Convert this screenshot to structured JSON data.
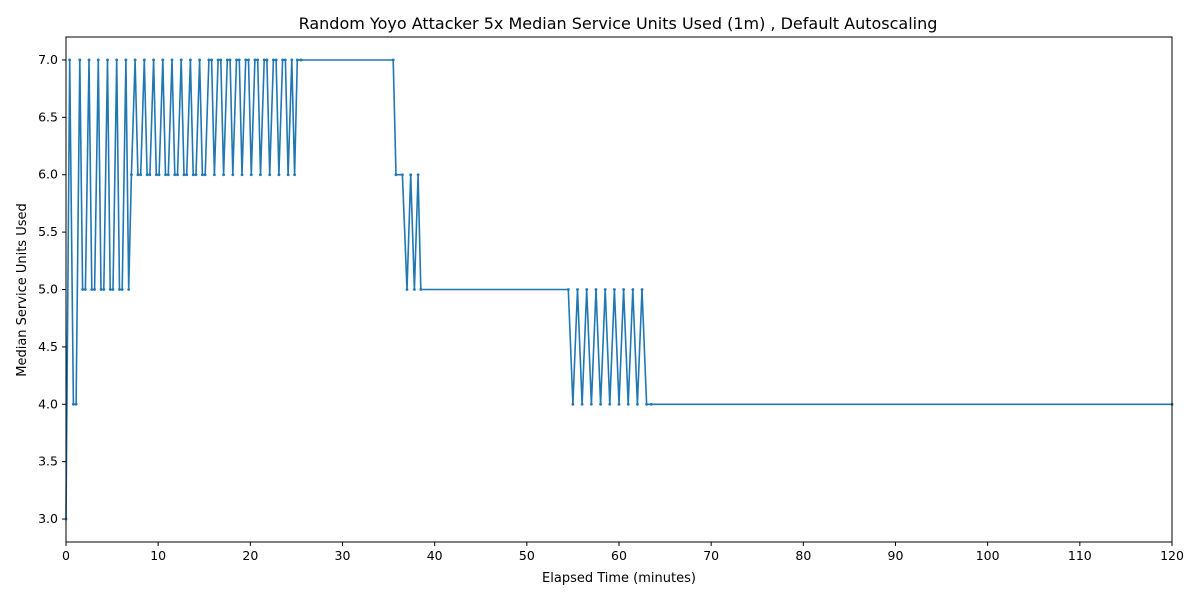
{
  "chart_data": {
    "type": "line",
    "title": "Random Yoyo Attacker 5x Median Service Units Used (1m) , Default Autoscaling",
    "xlabel": "Elapsed Time (minutes)",
    "ylabel": "Median Service Units Used",
    "xlim": [
      0,
      120
    ],
    "ylim": [
      2.8,
      7.2
    ],
    "xticks": [
      "0",
      "10",
      "20",
      "30",
      "40",
      "50",
      "60",
      "70",
      "80",
      "90",
      "100",
      "110",
      "120"
    ],
    "yticks": [
      "3.0",
      "3.5",
      "4.0",
      "4.5",
      "5.0",
      "5.5",
      "6.0",
      "6.5",
      "7.0"
    ],
    "grid": false,
    "legend": "none",
    "series": [
      {
        "color": "#1f77b4",
        "marker": "dot",
        "x": [
          0,
          0.4,
          0.8,
          1.1,
          1.5,
          1.8,
          2.1,
          2.5,
          2.8,
          3.1,
          3.5,
          3.8,
          4.1,
          4.5,
          4.8,
          5.1,
          5.5,
          5.8,
          6.1,
          6.5,
          6.8,
          7.1,
          7.5,
          7.8,
          8.1,
          8.5,
          8.8,
          9.1,
          9.5,
          9.8,
          10.1,
          10.5,
          10.8,
          11.1,
          11.5,
          11.8,
          12.1,
          12.5,
          12.8,
          13.1,
          13.5,
          13.8,
          14.1,
          14.5,
          14.8,
          15.1,
          15.5,
          15.8,
          16.1,
          16.5,
          16.8,
          17.1,
          17.5,
          17.8,
          18.1,
          18.5,
          18.8,
          19.1,
          19.5,
          19.8,
          20.1,
          20.5,
          20.8,
          21.1,
          21.5,
          21.8,
          22.1,
          22.5,
          22.8,
          23.1,
          23.5,
          23.8,
          24.1,
          24.5,
          24.8,
          25.1,
          25.5,
          35.5,
          35.8,
          36.5,
          37.0,
          37.4,
          37.8,
          38.2,
          38.5,
          54.5,
          55.0,
          55.5,
          56.0,
          56.5,
          57.0,
          57.5,
          58.0,
          58.5,
          59.0,
          59.5,
          60.0,
          60.5,
          61.0,
          61.5,
          62.0,
          62.5,
          63.0,
          63.5,
          120
        ],
        "y": [
          3,
          7,
          4,
          4,
          7,
          5,
          5,
          7,
          5,
          5,
          7,
          5,
          5,
          7,
          5,
          5,
          7,
          5,
          5,
          7,
          5,
          6,
          7,
          6,
          6,
          7,
          6,
          6,
          7,
          6,
          6,
          7,
          6,
          6,
          7,
          6,
          6,
          7,
          6,
          6,
          7,
          6,
          6,
          7,
          6,
          6,
          7,
          7,
          6,
          7,
          7,
          6,
          7,
          7,
          6,
          7,
          7,
          6,
          7,
          7,
          6,
          7,
          7,
          6,
          7,
          7,
          6,
          7,
          7,
          6,
          7,
          7,
          6,
          7,
          6,
          7,
          7,
          7,
          6,
          6,
          5,
          6,
          5,
          6,
          5,
          5,
          4,
          5,
          4,
          5,
          4,
          5,
          4,
          5,
          4,
          5,
          4,
          5,
          4,
          5,
          4,
          5,
          4,
          4,
          4
        ]
      }
    ]
  }
}
